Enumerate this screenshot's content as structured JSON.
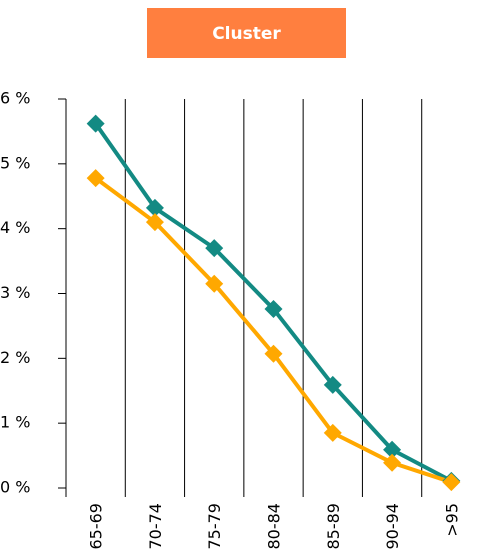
{
  "header": {
    "button": "Cluster"
  },
  "chart_data": {
    "type": "line",
    "categories": [
      "65-69",
      "70-74",
      "75-79",
      "80-84",
      "85-89",
      "90-94",
      ">95"
    ],
    "series": [
      {
        "color": "#138a83",
        "values": [
          5.62,
          4.32,
          3.7,
          2.76,
          1.59,
          0.59,
          0.11
        ]
      },
      {
        "color": "#ffa800",
        "values": [
          4.78,
          4.1,
          3.15,
          2.07,
          0.85,
          0.39,
          0.09
        ]
      }
    ],
    "ylim": [
      0,
      6
    ],
    "yticks": [
      {
        "value": 0,
        "label": "0 %"
      },
      {
        "value": 1,
        "label": "1 %"
      },
      {
        "value": 2,
        "label": "2 %"
      },
      {
        "value": 3,
        "label": "3 %"
      },
      {
        "value": 4,
        "label": "4 %"
      },
      {
        "value": 5,
        "label": "5 %"
      },
      {
        "value": 6,
        "label": "6 %"
      }
    ]
  }
}
